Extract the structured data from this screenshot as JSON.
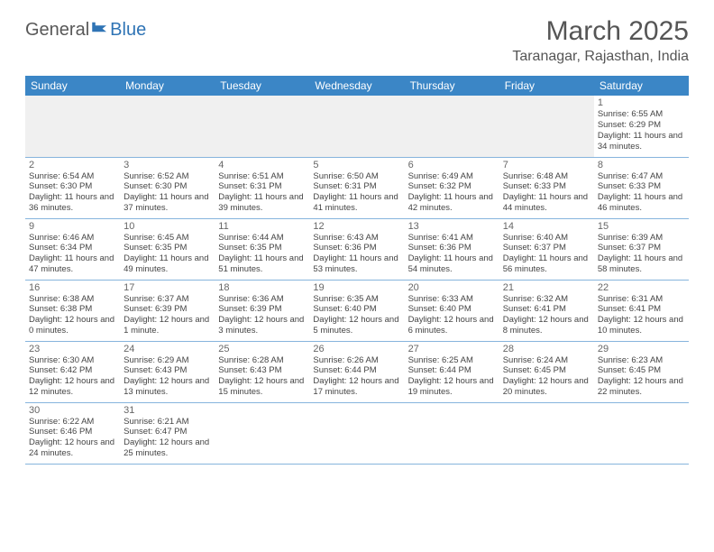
{
  "brand": {
    "part1": "General",
    "part2": "Blue",
    "flag_fill": "#2f74b5"
  },
  "title": "March 2025",
  "location": "Taranagar, Rajasthan, India",
  "colors": {
    "header_bg": "#3b86c6",
    "header_text": "#ffffff",
    "row_divider": "#86b4dd",
    "muted_row_bg": "#f0f0f0",
    "text": "#444444",
    "title_text": "#555555"
  },
  "weekdays": [
    "Sunday",
    "Monday",
    "Tuesday",
    "Wednesday",
    "Thursday",
    "Friday",
    "Saturday"
  ],
  "first_weekday_index": 6,
  "days": [
    {
      "n": 1,
      "sr": "6:55 AM",
      "ss": "6:29 PM",
      "dl": "11 hours and 34 minutes."
    },
    {
      "n": 2,
      "sr": "6:54 AM",
      "ss": "6:30 PM",
      "dl": "11 hours and 36 minutes."
    },
    {
      "n": 3,
      "sr": "6:52 AM",
      "ss": "6:30 PM",
      "dl": "11 hours and 37 minutes."
    },
    {
      "n": 4,
      "sr": "6:51 AM",
      "ss": "6:31 PM",
      "dl": "11 hours and 39 minutes."
    },
    {
      "n": 5,
      "sr": "6:50 AM",
      "ss": "6:31 PM",
      "dl": "11 hours and 41 minutes."
    },
    {
      "n": 6,
      "sr": "6:49 AM",
      "ss": "6:32 PM",
      "dl": "11 hours and 42 minutes."
    },
    {
      "n": 7,
      "sr": "6:48 AM",
      "ss": "6:33 PM",
      "dl": "11 hours and 44 minutes."
    },
    {
      "n": 8,
      "sr": "6:47 AM",
      "ss": "6:33 PM",
      "dl": "11 hours and 46 minutes."
    },
    {
      "n": 9,
      "sr": "6:46 AM",
      "ss": "6:34 PM",
      "dl": "11 hours and 47 minutes."
    },
    {
      "n": 10,
      "sr": "6:45 AM",
      "ss": "6:35 PM",
      "dl": "11 hours and 49 minutes."
    },
    {
      "n": 11,
      "sr": "6:44 AM",
      "ss": "6:35 PM",
      "dl": "11 hours and 51 minutes."
    },
    {
      "n": 12,
      "sr": "6:43 AM",
      "ss": "6:36 PM",
      "dl": "11 hours and 53 minutes."
    },
    {
      "n": 13,
      "sr": "6:41 AM",
      "ss": "6:36 PM",
      "dl": "11 hours and 54 minutes."
    },
    {
      "n": 14,
      "sr": "6:40 AM",
      "ss": "6:37 PM",
      "dl": "11 hours and 56 minutes."
    },
    {
      "n": 15,
      "sr": "6:39 AM",
      "ss": "6:37 PM",
      "dl": "11 hours and 58 minutes."
    },
    {
      "n": 16,
      "sr": "6:38 AM",
      "ss": "6:38 PM",
      "dl": "12 hours and 0 minutes."
    },
    {
      "n": 17,
      "sr": "6:37 AM",
      "ss": "6:39 PM",
      "dl": "12 hours and 1 minute."
    },
    {
      "n": 18,
      "sr": "6:36 AM",
      "ss": "6:39 PM",
      "dl": "12 hours and 3 minutes."
    },
    {
      "n": 19,
      "sr": "6:35 AM",
      "ss": "6:40 PM",
      "dl": "12 hours and 5 minutes."
    },
    {
      "n": 20,
      "sr": "6:33 AM",
      "ss": "6:40 PM",
      "dl": "12 hours and 6 minutes."
    },
    {
      "n": 21,
      "sr": "6:32 AM",
      "ss": "6:41 PM",
      "dl": "12 hours and 8 minutes."
    },
    {
      "n": 22,
      "sr": "6:31 AM",
      "ss": "6:41 PM",
      "dl": "12 hours and 10 minutes."
    },
    {
      "n": 23,
      "sr": "6:30 AM",
      "ss": "6:42 PM",
      "dl": "12 hours and 12 minutes."
    },
    {
      "n": 24,
      "sr": "6:29 AM",
      "ss": "6:43 PM",
      "dl": "12 hours and 13 minutes."
    },
    {
      "n": 25,
      "sr": "6:28 AM",
      "ss": "6:43 PM",
      "dl": "12 hours and 15 minutes."
    },
    {
      "n": 26,
      "sr": "6:26 AM",
      "ss": "6:44 PM",
      "dl": "12 hours and 17 minutes."
    },
    {
      "n": 27,
      "sr": "6:25 AM",
      "ss": "6:44 PM",
      "dl": "12 hours and 19 minutes."
    },
    {
      "n": 28,
      "sr": "6:24 AM",
      "ss": "6:45 PM",
      "dl": "12 hours and 20 minutes."
    },
    {
      "n": 29,
      "sr": "6:23 AM",
      "ss": "6:45 PM",
      "dl": "12 hours and 22 minutes."
    },
    {
      "n": 30,
      "sr": "6:22 AM",
      "ss": "6:46 PM",
      "dl": "12 hours and 24 minutes."
    },
    {
      "n": 31,
      "sr": "6:21 AM",
      "ss": "6:47 PM",
      "dl": "12 hours and 25 minutes."
    }
  ],
  "labels": {
    "sunrise": "Sunrise:",
    "sunset": "Sunset:",
    "daylight": "Daylight:"
  }
}
